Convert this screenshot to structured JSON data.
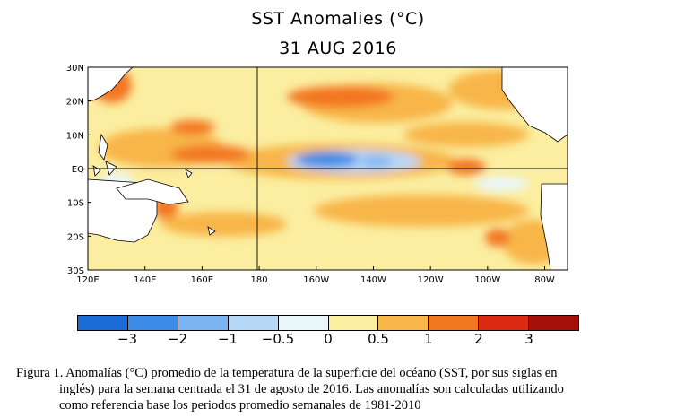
{
  "title": "SST Anomalies (°C)",
  "date": "31 AUG 2016",
  "map": {
    "lat_labels": [
      "30N",
      "20N",
      "10N",
      "EQ",
      "10S",
      "20S",
      "30S"
    ],
    "lon_labels": [
      "120E",
      "140E",
      "160E",
      "180",
      "160W",
      "140W",
      "120W",
      "100W",
      "80W"
    ],
    "colors": {
      "land": "#ffffff",
      "coast": "#000000",
      "ocean_base": "#fbeea0"
    }
  },
  "legend": {
    "labels": [
      "−3",
      "−2",
      "−1",
      "−0.5",
      "0",
      "0.5",
      "1",
      "2",
      "3"
    ],
    "colors": [
      "#1a6bd6",
      "#3c8ce8",
      "#7cb3f2",
      "#b8d8f8",
      "#e9f7fb",
      "#fbeea0",
      "#f8b64a",
      "#f37621",
      "#dd2a13",
      "#a50f0a"
    ]
  },
  "caption": {
    "line1": "Figura 1. Anomalías (°C) promedio de la temperatura de la superficie del océano (SST, por sus siglas en",
    "line2": "inglés) para la semana centrada el 31 de agosto de 2016. Las anomalías son calculadas utilizando",
    "line3": "como referencia base los periodos promedio semanales de 1981-2010"
  }
}
